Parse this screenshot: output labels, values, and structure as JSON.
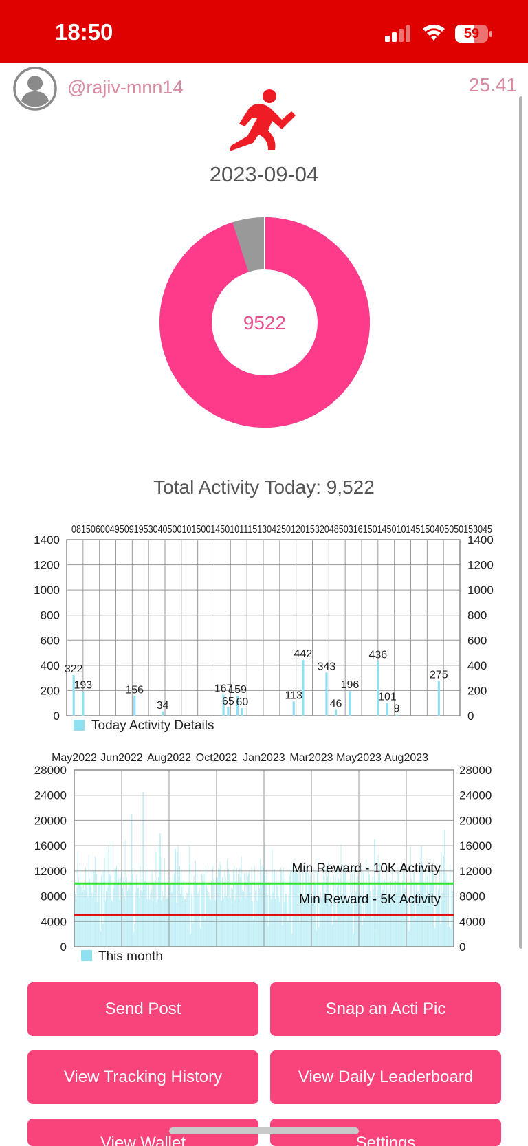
{
  "status_bar": {
    "time": "18:50",
    "battery": "59",
    "battery_level": 0.59
  },
  "header": {
    "username": "@rajiv-mnn14",
    "balance": "25.41"
  },
  "date": "2023-09-04",
  "donut": {
    "center_value": "9522",
    "progress_fraction": 0.95,
    "colors": {
      "progress": "#fe3a8b",
      "remainder": "#999999"
    }
  },
  "total_activity": "Total Activity Today: 9,522",
  "chart_data": [
    {
      "type": "bar",
      "top_axis_text": "0815060049509195304050010150014501011151304250120153204850316150145010145150405050153045",
      "ylim": [
        0,
        1400
      ],
      "yticks": [
        0,
        200,
        400,
        600,
        800,
        1000,
        1200,
        1400
      ],
      "legend": "Today Activity Details",
      "colors": {
        "bar": "#8fe1f2",
        "grid": "#999999"
      },
      "data_labels": [
        {
          "slot": 1,
          "value": 322
        },
        {
          "slot": 3,
          "value": 193
        },
        {
          "slot": 14,
          "value": 156
        },
        {
          "slot": 20,
          "value": 34
        },
        {
          "slot": 33,
          "value": 167
        },
        {
          "slot": 34,
          "value": 65
        },
        {
          "slot": 36,
          "value": 159
        },
        {
          "slot": 37,
          "value": 60
        },
        {
          "slot": 48,
          "value": 113
        },
        {
          "slot": 50,
          "value": 442
        },
        {
          "slot": 55,
          "value": 343
        },
        {
          "slot": 57,
          "value": 46
        },
        {
          "slot": 60,
          "value": 196
        },
        {
          "slot": 66,
          "value": 436
        },
        {
          "slot": 68,
          "value": 101
        },
        {
          "slot": 70,
          "value": 9
        },
        {
          "slot": 79,
          "value": 275
        }
      ]
    },
    {
      "type": "bar",
      "xlabels": [
        "May2022",
        "Jun2022",
        "Aug2022",
        "Oct2022",
        "Jan2023",
        "Mar2023",
        "May2023",
        "Aug2023"
      ],
      "ylim": [
        0,
        28000
      ],
      "yticks": [
        0,
        4000,
        8000,
        12000,
        16000,
        20000,
        24000,
        28000
      ],
      "legend": "This month",
      "colors": {
        "bar": "#bfeef6",
        "grid": "#999999",
        "line_10k": "#33e233",
        "line_5k": "#dd1111"
      },
      "reference_lines": [
        {
          "label": "Min Reward - 10K Activity",
          "value": 10000
        },
        {
          "label": "Min Reward - 5K Activity",
          "value": 5000
        }
      ],
      "peaks": [
        {
          "month": "Jun2022",
          "value": 21000
        },
        {
          "month": "Jul2022",
          "value": 24500
        },
        {
          "month": "Aug2022",
          "value": 18000
        },
        {
          "month": "Sep2022",
          "value": 15500
        },
        {
          "month": "May2023",
          "value": 17000
        },
        {
          "month": "Aug2023",
          "value": 18500
        }
      ]
    }
  ],
  "buttons": {
    "send_post": "Send Post",
    "snap_pic": "Snap an Acti Pic",
    "tracking_history": "View Tracking History",
    "daily_leaderboard": "View Daily Leaderboard",
    "view_wallet": "View Wallet",
    "settings": "Settings"
  }
}
